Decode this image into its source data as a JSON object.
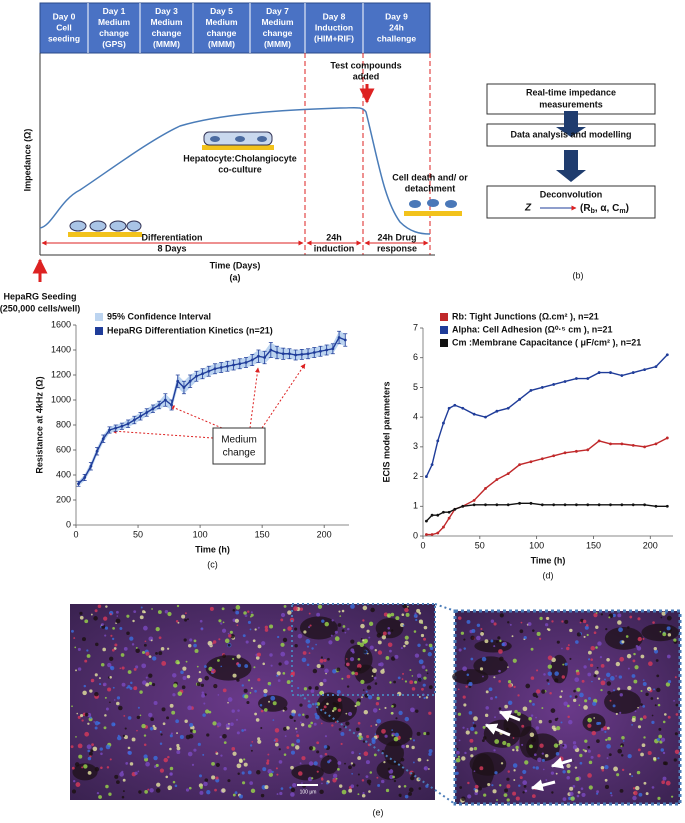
{
  "panel_a": {
    "header": [
      [
        "Day 0",
        "Cell",
        "seeding"
      ],
      [
        "Day 1",
        "Medium",
        "change",
        "(GPS)"
      ],
      [
        "Day 3",
        "Medium",
        "change",
        "(MMM)"
      ],
      [
        "Day 5",
        "Medium",
        "change",
        "(MMM)"
      ],
      [
        "Day 7",
        "Medium",
        "change",
        "(MMM)"
      ],
      [
        "Day 8",
        "Induction",
        "(HIM+RIF)"
      ],
      [
        "Day 9",
        "24h",
        "challenge"
      ]
    ],
    "y_label": "Impedance (Ω)",
    "x_label": "Time (Days)",
    "test_compounds": [
      "Test compounds",
      "added"
    ],
    "coculture": [
      "Hepatocyte:Cholangiocyte",
      "co-culture"
    ],
    "cell_death": [
      "Cell death and/ or",
      "detachment"
    ],
    "differentiation": "Differentiation",
    "days": "8 Days",
    "induction": [
      "24h",
      "induction"
    ],
    "drug_response": [
      "24h Drug",
      "response"
    ],
    "seeding": [
      "HepaRG Seeding",
      "(250,000 cells/well)"
    ],
    "label": "(a)"
  },
  "panel_b": {
    "steps": [
      [
        "Real-time impedance",
        "measurements"
      ],
      [
        "Data analysis and modelling"
      ],
      [
        "Deconvolution"
      ]
    ],
    "formula": {
      "lhs": "Z",
      "rhs": [
        "(R",
        "b",
        ", α, C",
        "m",
        ")"
      ]
    },
    "label": "(b)"
  },
  "chart_data": [
    {
      "type": "line",
      "y_label": "Resistance at 4kHz (Ω)",
      "x_label": "Time (h)",
      "label": "(c)",
      "xlim": [
        0,
        220
      ],
      "xticks": [
        0,
        50,
        100,
        150,
        200
      ],
      "ylim": [
        0,
        1600
      ],
      "yticks": [
        0,
        200,
        400,
        600,
        800,
        1000,
        1200,
        1400,
        1600
      ],
      "annotation": [
        "Medium",
        "change"
      ],
      "series": [
        {
          "name": "HepaRG Differentiation Kinetics (n=21)",
          "color": "#1f3c99",
          "error_name": "95% Confidence Interval",
          "error_color": "#bcd4f0",
          "x": [
            2,
            7,
            12,
            17,
            22,
            27,
            32,
            37,
            42,
            47,
            52,
            57,
            62,
            67,
            72,
            77,
            82,
            87,
            92,
            97,
            102,
            107,
            112,
            117,
            122,
            127,
            132,
            137,
            142,
            147,
            152,
            157,
            162,
            167,
            172,
            177,
            182,
            187,
            192,
            197,
            202,
            207,
            212,
            217
          ],
          "values": [
            330,
            380,
            470,
            590,
            690,
            760,
            775,
            790,
            810,
            840,
            870,
            900,
            930,
            960,
            1000,
            960,
            1150,
            1100,
            1150,
            1190,
            1210,
            1230,
            1250,
            1260,
            1270,
            1280,
            1290,
            1300,
            1320,
            1350,
            1340,
            1400,
            1380,
            1370,
            1370,
            1360,
            1365,
            1370,
            1380,
            1390,
            1400,
            1410,
            1500,
            1480
          ],
          "error": [
            20,
            25,
            30,
            30,
            30,
            25,
            25,
            25,
            30,
            30,
            30,
            30,
            30,
            30,
            50,
            40,
            50,
            50,
            50,
            40,
            40,
            40,
            40,
            40,
            40,
            40,
            40,
            40,
            45,
            50,
            50,
            60,
            50,
            45,
            40,
            40,
            40,
            40,
            40,
            40,
            40,
            40,
            50,
            50
          ]
        }
      ]
    },
    {
      "type": "line",
      "y_label": "ECIS model parameters",
      "x_label": "Time (h)",
      "label": "(d)",
      "xlim": [
        0,
        220
      ],
      "xticks": [
        0,
        50,
        100,
        150,
        200
      ],
      "ylim": [
        0,
        7
      ],
      "yticks": [
        0,
        1,
        2,
        3,
        4,
        5,
        6,
        7
      ],
      "series": [
        {
          "name": "Rb: Tight Junctions (Ω.cm² ), n=21",
          "color": "#c0282a",
          "x": [
            3,
            8,
            13,
            18,
            23,
            28,
            35,
            45,
            55,
            65,
            75,
            85,
            95,
            105,
            115,
            125,
            135,
            145,
            155,
            165,
            175,
            185,
            195,
            205,
            215
          ],
          "values": [
            0.05,
            0.05,
            0.1,
            0.3,
            0.6,
            0.9,
            1.0,
            1.2,
            1.6,
            1.9,
            2.1,
            2.4,
            2.5,
            2.6,
            2.7,
            2.8,
            2.85,
            2.9,
            3.2,
            3.1,
            3.1,
            3.05,
            3.0,
            3.1,
            3.3
          ]
        },
        {
          "name": "Alpha: Cell Adhesion (Ω⁰·⁵ cm ), n=21",
          "color": "#1f3c99",
          "x": [
            3,
            8,
            13,
            18,
            23,
            28,
            35,
            45,
            55,
            65,
            75,
            85,
            95,
            105,
            115,
            125,
            135,
            145,
            155,
            165,
            175,
            185,
            195,
            205,
            215
          ],
          "values": [
            2.0,
            2.4,
            3.2,
            3.8,
            4.3,
            4.4,
            4.3,
            4.1,
            4.0,
            4.2,
            4.3,
            4.6,
            4.9,
            5.0,
            5.1,
            5.2,
            5.3,
            5.3,
            5.5,
            5.5,
            5.4,
            5.5,
            5.6,
            5.7,
            6.1
          ]
        },
        {
          "name": "Cm :Membrane Capacitance ( μF/cm² ), n=21",
          "color": "#111111",
          "x": [
            3,
            8,
            13,
            18,
            23,
            28,
            35,
            45,
            55,
            65,
            75,
            85,
            95,
            105,
            115,
            125,
            135,
            145,
            155,
            165,
            175,
            185,
            195,
            205,
            215
          ],
          "values": [
            0.5,
            0.7,
            0.7,
            0.8,
            0.8,
            0.9,
            1.0,
            1.05,
            1.05,
            1.05,
            1.05,
            1.1,
            1.1,
            1.05,
            1.05,
            1.05,
            1.05,
            1.05,
            1.05,
            1.05,
            1.05,
            1.05,
            1.05,
            1.0,
            1.0
          ]
        }
      ]
    }
  ],
  "panel_e": {
    "scale_bar": "100 μm",
    "label": "(e)"
  }
}
